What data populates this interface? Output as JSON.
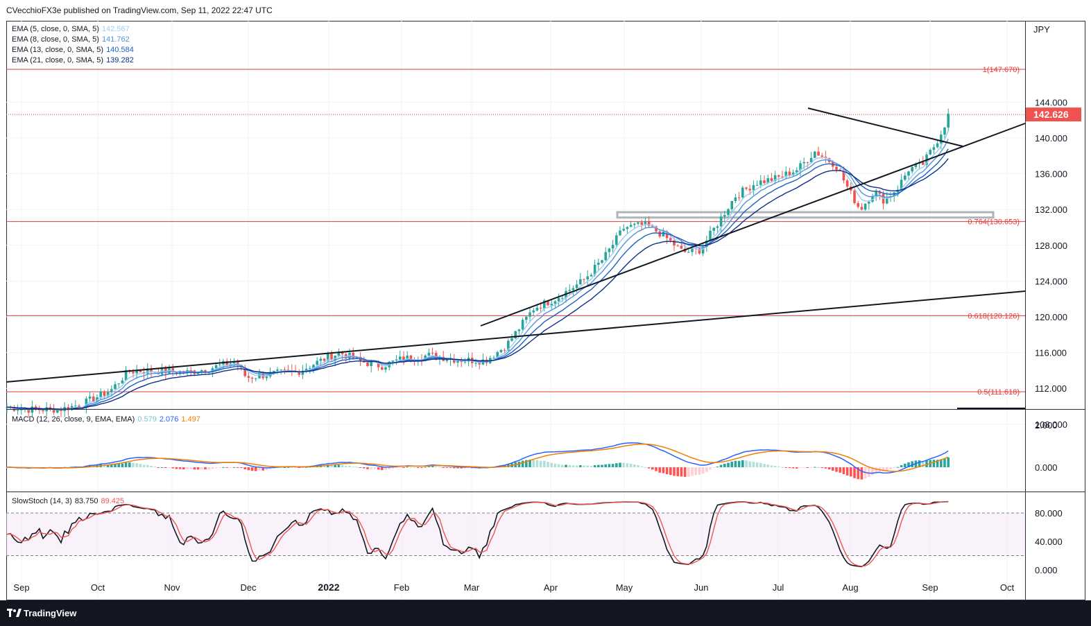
{
  "header": {
    "publisher_line": "CVecchioFX3e published on TradingView.com, Sep 11, 2022 22:47 UTC"
  },
  "footer": {
    "brand": "TradingView"
  },
  "price_pane": {
    "currency": "JPY",
    "last_price": "142.626",
    "y_ticks": [
      "144.000",
      "140.000",
      "136.000",
      "132.000",
      "128.000",
      "124.000",
      "120.000",
      "116.000",
      "112.000",
      "108.000"
    ],
    "ema_legend": [
      {
        "label": "EMA (5, close, 0, SMA, 5)",
        "value": "142.567",
        "color": "#9ecbf0"
      },
      {
        "label": "EMA (8, close, 0, SMA, 5)",
        "value": "141.762",
        "color": "#4f93dc"
      },
      {
        "label": "EMA (13, close, 0, SMA, 5)",
        "value": "140.584",
        "color": "#1c5fbf"
      },
      {
        "label": "EMA (21, close, 0, SMA, 5)",
        "value": "139.282",
        "color": "#0c2f86"
      }
    ],
    "fib_levels": [
      {
        "label": "1(147.670)",
        "value": 147.67
      },
      {
        "label": "0.764(130.653)",
        "value": 130.653
      },
      {
        "label": "0.618(120.126)",
        "value": 120.126
      },
      {
        "label": "0.5(111.618)",
        "value": 111.618
      }
    ]
  },
  "macd_pane": {
    "legend_label": "MACD (12, 26, close, 9, EMA, EMA)",
    "values": [
      "0.579",
      "2.076",
      "1.497"
    ],
    "y_ticks": [
      "2.000",
      "0.000"
    ]
  },
  "stoch_pane": {
    "legend_label": "SlowStoch (14, 3)",
    "values": [
      "83.750",
      "89.425"
    ],
    "y_ticks": [
      "80.000",
      "40.000",
      "0.000"
    ]
  },
  "x_axis": {
    "labels": [
      "Sep",
      "Oct",
      "Nov",
      "Dec",
      "2022",
      "Feb",
      "Mar",
      "Apr",
      "May",
      "Jun",
      "Jul",
      "Aug",
      "Sep",
      "Oct"
    ]
  },
  "colors": {
    "up": "#26a69a",
    "down": "#ef5350",
    "price_tag": "#ef5350",
    "fib": "#e53935",
    "orange": "#f57c00",
    "macd_blue": "#2962ff"
  },
  "chart_data": {
    "type": "line",
    "title": "",
    "x": [
      "Sep 2021",
      "Oct 2021",
      "Nov 2021",
      "Dec 2021",
      "Jan 2022",
      "Feb 2022",
      "Mar 2022",
      "Apr 2022",
      "May 2022",
      "Jun 2022",
      "Jul 2022",
      "Aug 2022",
      "Sep 2022"
    ],
    "series": [
      {
        "values": [
          110.0,
          111.0,
          114.0,
          113.5,
          115.5,
          115.0,
          115.0,
          122.0,
          130.0,
          128.0,
          136.5,
          134.0,
          142.6
        ]
      }
    ],
    "ylim": [
      105.0,
      149.0
    ],
    "yscale": "linear",
    "grid": true,
    "annotations": [
      "1(147.670)",
      "0.764(130.653)",
      "0.618(120.126)",
      "0.5(111.618)"
    ]
  }
}
